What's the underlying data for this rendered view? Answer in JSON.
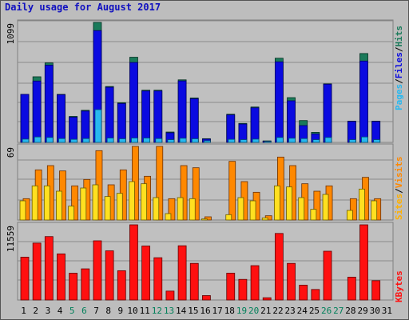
{
  "title": "Daily usage for August 2017",
  "chart_data": [
    {
      "type": "bar",
      "panel": "top",
      "ymax_label": "1099",
      "legend": [
        "Pages",
        "Files",
        "Hits"
      ],
      "colors": {
        "hits": "#1a7a5a",
        "files": "#0a0ae0",
        "pages": "#28b8f0"
      },
      "x": [
        1,
        2,
        3,
        4,
        5,
        6,
        7,
        8,
        9,
        10,
        11,
        12,
        13,
        14,
        15,
        16,
        17,
        18,
        19,
        20,
        21,
        22,
        23,
        24,
        25,
        26,
        27,
        28,
        29,
        30,
        31
      ],
      "series": [
        {
          "name": "Hits",
          "values": [
            440,
            601,
            728,
            440,
            238,
            294,
            1099,
            512,
            363,
            780,
            478,
            478,
            95,
            573,
            407,
            34,
            0,
            258,
            174,
            324,
            14,
            771,
            410,
            200,
            92,
            536,
            0,
            195,
            814,
            195,
            0
          ]
        },
        {
          "name": "Files",
          "values": [
            440,
            562,
            707,
            437,
            231,
            287,
            1024,
            505,
            356,
            732,
            471,
            471,
            88,
            563,
            400,
            30,
            0,
            252,
            168,
            317,
            10,
            738,
            381,
            154,
            78,
            533,
            0,
            192,
            745,
            192,
            0
          ]
        },
        {
          "name": "Pages",
          "values": [
            30,
            50,
            45,
            35,
            28,
            35,
            300,
            40,
            33,
            40,
            40,
            35,
            25,
            38,
            33,
            15,
            0,
            28,
            25,
            30,
            8,
            45,
            38,
            35,
            25,
            45,
            0,
            25,
            50,
            25,
            0
          ]
        }
      ]
    },
    {
      "type": "bar",
      "panel": "middle",
      "ymax_label": "69",
      "legend": [
        "Sites",
        "Visits"
      ],
      "colors": {
        "visits": "#ff8800",
        "sites": "#ffe020"
      },
      "x": [
        1,
        2,
        3,
        4,
        5,
        6,
        7,
        8,
        9,
        10,
        11,
        12,
        13,
        14,
        15,
        16,
        17,
        18,
        19,
        20,
        21,
        22,
        23,
        24,
        25,
        26,
        27,
        28,
        29,
        30,
        31
      ],
      "series": [
        {
          "name": "Visits",
          "values": [
            20,
            47,
            51,
            46,
            32,
            38,
            65,
            33,
            47,
            69,
            41,
            69,
            20,
            51,
            49,
            3,
            0,
            55,
            36,
            26,
            4,
            59,
            51,
            34,
            27,
            32,
            0,
            20,
            40,
            20,
            0
          ]
        },
        {
          "name": "Sites",
          "values": [
            18,
            32,
            32,
            27,
            13,
            30,
            33,
            22,
            25,
            36,
            34,
            21,
            6,
            21,
            20,
            1,
            0,
            5,
            21,
            18,
            2,
            32,
            31,
            21,
            10,
            24,
            0,
            9,
            29,
            18,
            0
          ]
        }
      ]
    },
    {
      "type": "bar",
      "panel": "bottom",
      "ymax_label": "11559",
      "legend": [
        "KBytes"
      ],
      "colors": {
        "kbytes": "#ff1010"
      },
      "x": [
        1,
        2,
        3,
        4,
        5,
        6,
        7,
        8,
        9,
        10,
        11,
        12,
        13,
        14,
        15,
        16,
        17,
        18,
        19,
        20,
        21,
        22,
        23,
        24,
        25,
        26,
        27,
        28,
        29,
        30,
        31
      ],
      "series": [
        {
          "name": "KBytes",
          "values": [
            6590,
            8750,
            9750,
            7090,
            4120,
            4790,
            9100,
            7560,
            4500,
            11559,
            8300,
            6500,
            1370,
            8340,
            5630,
            680,
            0,
            4130,
            3170,
            5280,
            350,
            10230,
            5630,
            2280,
            1620,
            7500,
            0,
            3510,
            11559,
            2970,
            0
          ]
        }
      ]
    }
  ],
  "x_labels": [
    "1",
    "2",
    "3",
    "4",
    "5",
    "6",
    "7",
    "8",
    "9",
    "10",
    "11",
    "12",
    "13",
    "14",
    "15",
    "16",
    "17",
    "18",
    "19",
    "20",
    "21",
    "22",
    "23",
    "24",
    "25",
    "26",
    "27",
    "28",
    "29",
    "30",
    "31"
  ],
  "weekend_days": [
    5,
    6,
    12,
    13,
    19,
    20,
    26,
    27
  ],
  "weekday_color": "#000000",
  "weekend_color": "#00805a"
}
